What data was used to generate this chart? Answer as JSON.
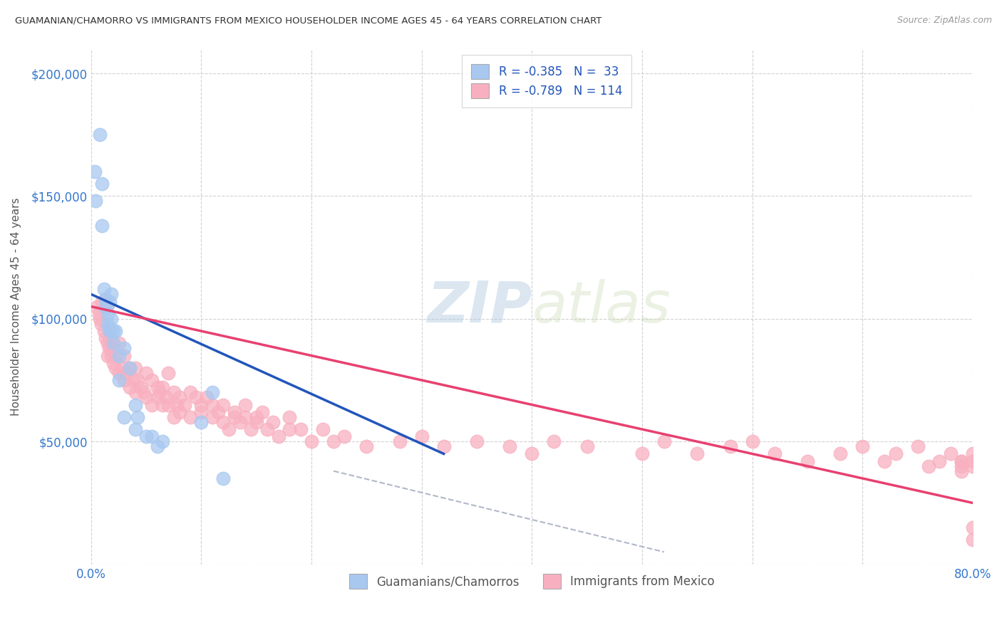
{
  "title": "GUAMANIAN/CHAMORRO VS IMMIGRANTS FROM MEXICO HOUSEHOLDER INCOME AGES 45 - 64 YEARS CORRELATION CHART",
  "source": "Source: ZipAtlas.com",
  "ylabel": "Householder Income Ages 45 - 64 years",
  "xlim": [
    0.0,
    0.8
  ],
  "ylim": [
    0,
    210000
  ],
  "xticks": [
    0.0,
    0.1,
    0.2,
    0.3,
    0.4,
    0.5,
    0.6,
    0.7,
    0.8
  ],
  "xticklabels": [
    "0.0%",
    "",
    "",
    "",
    "",
    "",
    "",
    "",
    "80.0%"
  ],
  "yticks": [
    0,
    50000,
    100000,
    150000,
    200000
  ],
  "yticklabels": [
    "",
    "$50,000",
    "$100,000",
    "$150,000",
    "$200,000"
  ],
  "blue_color": "#a8c8f0",
  "blue_line_color": "#2255bb",
  "pink_color": "#f8b0c0",
  "pink_line_color": "#e84070",
  "dashed_line_color": "#b0b8c8",
  "legend_R1": "R = -0.385",
  "legend_N1": "N =  33",
  "legend_R2": "R = -0.789",
  "legend_N2": "N = 114",
  "legend_label1": "Guamanians/Chamorros",
  "legend_label2": "Immigrants from Mexico",
  "watermark_zip": "ZIP",
  "watermark_atlas": "atlas",
  "blue_scatter_x": [
    0.003,
    0.004,
    0.008,
    0.01,
    0.01,
    0.012,
    0.013,
    0.013,
    0.015,
    0.015,
    0.016,
    0.017,
    0.017,
    0.018,
    0.018,
    0.02,
    0.02,
    0.022,
    0.025,
    0.025,
    0.03,
    0.03,
    0.035,
    0.04,
    0.04,
    0.042,
    0.05,
    0.055,
    0.06,
    0.065,
    0.1,
    0.11,
    0.12
  ],
  "blue_scatter_y": [
    160000,
    148000,
    175000,
    155000,
    138000,
    112000,
    108000,
    105000,
    102000,
    98000,
    96000,
    107000,
    95000,
    110000,
    100000,
    95000,
    90000,
    95000,
    85000,
    75000,
    88000,
    60000,
    80000,
    65000,
    55000,
    60000,
    52000,
    52000,
    48000,
    50000,
    58000,
    70000,
    35000
  ],
  "pink_scatter_x": [
    0.005,
    0.007,
    0.008,
    0.009,
    0.01,
    0.012,
    0.013,
    0.014,
    0.015,
    0.015,
    0.016,
    0.017,
    0.018,
    0.018,
    0.019,
    0.02,
    0.022,
    0.022,
    0.025,
    0.025,
    0.028,
    0.03,
    0.03,
    0.032,
    0.035,
    0.035,
    0.038,
    0.04,
    0.04,
    0.042,
    0.045,
    0.048,
    0.05,
    0.05,
    0.055,
    0.055,
    0.06,
    0.06,
    0.062,
    0.065,
    0.065,
    0.068,
    0.07,
    0.07,
    0.075,
    0.075,
    0.078,
    0.08,
    0.08,
    0.085,
    0.09,
    0.09,
    0.095,
    0.1,
    0.1,
    0.105,
    0.11,
    0.11,
    0.115,
    0.12,
    0.12,
    0.125,
    0.13,
    0.13,
    0.135,
    0.14,
    0.14,
    0.145,
    0.15,
    0.15,
    0.155,
    0.16,
    0.165,
    0.17,
    0.18,
    0.18,
    0.19,
    0.2,
    0.21,
    0.22,
    0.23,
    0.25,
    0.28,
    0.3,
    0.32,
    0.35,
    0.38,
    0.4,
    0.42,
    0.45,
    0.5,
    0.52,
    0.55,
    0.58,
    0.6,
    0.62,
    0.65,
    0.68,
    0.7,
    0.72,
    0.73,
    0.75,
    0.76,
    0.77,
    0.78,
    0.79,
    0.79,
    0.79,
    0.79,
    0.8,
    0.8,
    0.8,
    0.8,
    0.8
  ],
  "pink_scatter_y": [
    105000,
    102000,
    100000,
    98000,
    107000,
    95000,
    92000,
    105000,
    90000,
    85000,
    88000,
    92000,
    88000,
    85000,
    90000,
    82000,
    85000,
    80000,
    90000,
    78000,
    80000,
    85000,
    75000,
    78000,
    80000,
    72000,
    75000,
    80000,
    70000,
    75000,
    72000,
    70000,
    78000,
    68000,
    75000,
    65000,
    72000,
    68000,
    70000,
    72000,
    65000,
    68000,
    78000,
    65000,
    70000,
    60000,
    65000,
    68000,
    62000,
    65000,
    70000,
    60000,
    68000,
    65000,
    62000,
    68000,
    60000,
    65000,
    62000,
    58000,
    65000,
    55000,
    60000,
    62000,
    58000,
    65000,
    60000,
    55000,
    60000,
    58000,
    62000,
    55000,
    58000,
    52000,
    55000,
    60000,
    55000,
    50000,
    55000,
    50000,
    52000,
    48000,
    50000,
    52000,
    48000,
    50000,
    48000,
    45000,
    50000,
    48000,
    45000,
    50000,
    45000,
    48000,
    50000,
    45000,
    42000,
    45000,
    48000,
    42000,
    45000,
    48000,
    40000,
    42000,
    45000,
    42000,
    42000,
    40000,
    38000,
    45000,
    42000,
    40000,
    10000,
    15000
  ],
  "blue_line_x": [
    0.0,
    0.32
  ],
  "blue_line_y": [
    110000,
    45000
  ],
  "pink_line_x": [
    0.0,
    0.8
  ],
  "pink_line_y": [
    105000,
    25000
  ],
  "dashed_line_x": [
    0.22,
    0.52
  ],
  "dashed_line_y": [
    38000,
    5000
  ],
  "background_color": "#ffffff",
  "grid_color": "#cccccc"
}
